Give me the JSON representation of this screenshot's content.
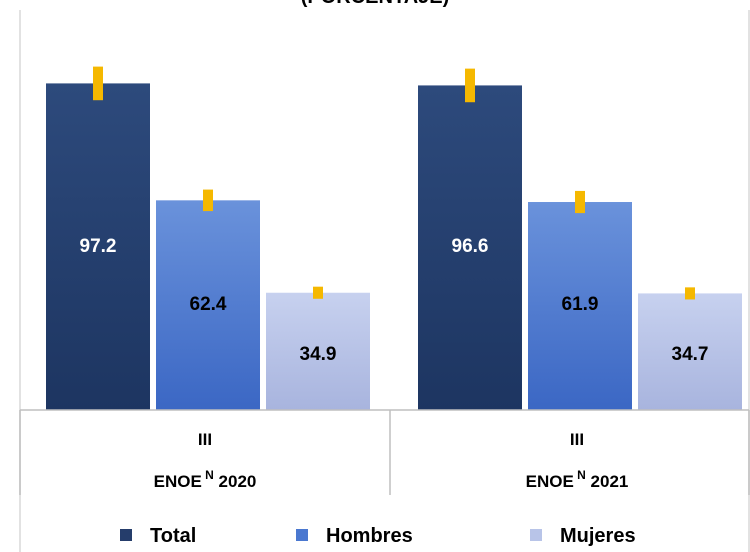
{
  "title": "(PORCENTAJE)",
  "chart_data": {
    "type": "bar",
    "categories": [
      {
        "line1": "III",
        "line2": "ENOE",
        "sup": "N",
        "year": "2020"
      },
      {
        "line1": "III",
        "line2": "ENOE",
        "sup": "N",
        "year": "2021"
      }
    ],
    "series": [
      {
        "name": "Total",
        "color": "#253d6b",
        "values": [
          97.2,
          96.6
        ],
        "labels": [
          "97.2",
          "96.6"
        ],
        "err": [
          5,
          5
        ],
        "label_color": "#ffffff"
      },
      {
        "name": "Hombres",
        "color": "#4a78d0",
        "values": [
          62.4,
          61.9
        ],
        "labels": [
          "62.4",
          "61.9"
        ],
        "err": [
          3.2,
          3.3
        ],
        "label_color": "#000000"
      },
      {
        "name": "Mujeres",
        "color": "#b8c4e8",
        "values": [
          34.9,
          34.7
        ],
        "labels": [
          "34.9",
          "34.7"
        ],
        "err": [
          1.8,
          1.8
        ],
        "label_color": "#000000"
      }
    ],
    "ylim": [
      0,
      100
    ],
    "error_bar_color": "#f5b800",
    "legend_position": "bottom"
  }
}
